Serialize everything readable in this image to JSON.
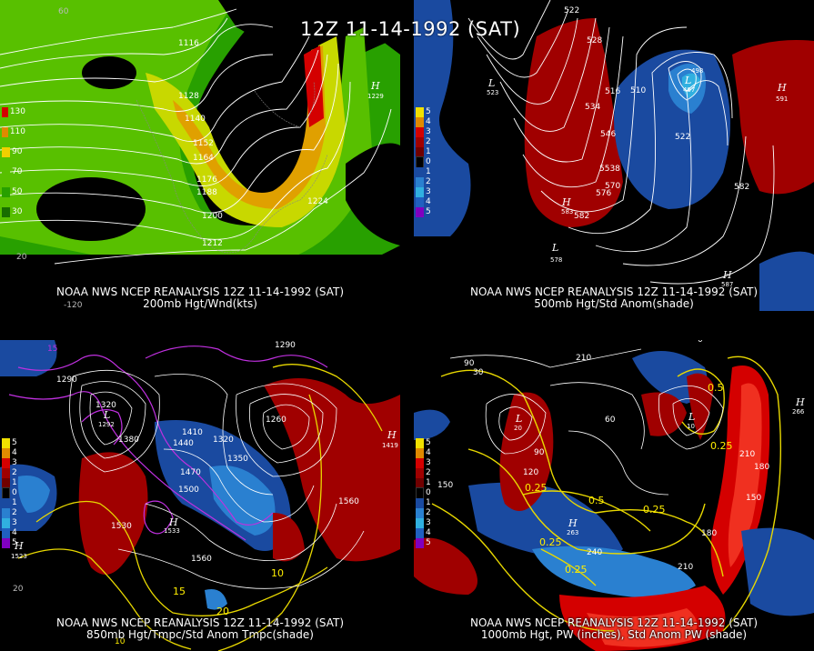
{
  "main_title": "12Z 11-14-1992 (SAT)",
  "panels": [
    {
      "id": "p200",
      "caption_line1": "NOAA NWS NCEP REANALYSIS 12Z 11-14-1992 (SAT)",
      "caption_line2": "200mb Hgt/Wnd(kts)",
      "legend": [
        {
          "label": "130",
          "color": "#d40000"
        },
        {
          "label": "110",
          "color": "#e08a00"
        },
        {
          "label": "90",
          "color": "#f0d000"
        },
        {
          "label": "70",
          "color": "#58c000"
        },
        {
          "label": "50",
          "color": "#28a000"
        },
        {
          "label": "30",
          "color": "#186e00"
        }
      ],
      "contour_labels": [
        "1116",
        "1128",
        "1140",
        "1152",
        "1164",
        "1176",
        "1188",
        "1200",
        "1212",
        "1224"
      ],
      "high_labels": [
        {
          "symbol": "H",
          "value": "1229"
        }
      ],
      "misc_labels": [
        "60",
        "20",
        "-120"
      ]
    },
    {
      "id": "p500",
      "caption_line1": "NOAA NWS NCEP REANALYSIS 12Z 11-14-1992 (SAT)",
      "caption_line2": "500mb Hgt/Std Anom(shade)",
      "legend": [
        {
          "label": "5",
          "color": "#f0e000"
        },
        {
          "label": "4",
          "color": "#e08a00"
        },
        {
          "label": "3",
          "color": "#d40000"
        },
        {
          "label": "2",
          "color": "#a00000"
        },
        {
          "label": "1",
          "color": "#700000"
        },
        {
          "label": "0",
          "color": "#000000"
        },
        {
          "label": "1",
          "color": "#1a4aa0"
        },
        {
          "label": "2",
          "color": "#2a80d0"
        },
        {
          "label": "3",
          "color": "#30b0e0"
        },
        {
          "label": "4",
          "color": "#2060c0"
        },
        {
          "label": "5",
          "color": "#8000c0"
        }
      ],
      "contour_labels": [
        "522",
        "528",
        "516",
        "510",
        "534",
        "546",
        "522",
        "5538",
        "570",
        "576",
        "582",
        "582"
      ],
      "high_labels": [
        {
          "symbol": "H",
          "value": "583"
        },
        {
          "symbol": "H",
          "value": "591"
        },
        {
          "symbol": "H",
          "value": "587"
        }
      ],
      "low_labels": [
        {
          "symbol": "L",
          "value": "523"
        },
        {
          "symbol": "L",
          "value": "578"
        },
        {
          "symbol": "L",
          "value": "497"
        }
      ],
      "misc_labels": [
        "498"
      ]
    },
    {
      "id": "p850",
      "caption_line1": "NOAA NWS NCEP REANALYSIS 12Z 11-14-1992 (SAT)",
      "caption_line2": "850mb Hgt/Tmpc/Std Anom Tmpc(shade)",
      "legend": [
        {
          "label": "5",
          "color": "#f0e000"
        },
        {
          "label": "4",
          "color": "#e08a00"
        },
        {
          "label": "3",
          "color": "#d40000"
        },
        {
          "label": "2",
          "color": "#a00000"
        },
        {
          "label": "1",
          "color": "#700000"
        },
        {
          "label": "0",
          "color": "#000000"
        },
        {
          "label": "1",
          "color": "#1a4aa0"
        },
        {
          "label": "2",
          "color": "#2a80d0"
        },
        {
          "label": "3",
          "color": "#30b0e0"
        },
        {
          "label": "4",
          "color": "#2060c0"
        },
        {
          "label": "5",
          "color": "#8000c0"
        }
      ],
      "contour_labels": [
        "1290",
        "1320",
        "1380",
        "1410",
        "1440",
        "1470",
        "1500",
        "1530",
        "1560",
        "1350",
        "1320",
        "1290",
        "1260",
        "1560"
      ],
      "temp_labels": [
        "10",
        "15",
        "20"
      ],
      "high_labels": [
        {
          "symbol": "H",
          "value": "1523"
        },
        {
          "symbol": "H",
          "value": "1533"
        },
        {
          "symbol": "H",
          "value": "1419"
        }
      ],
      "low_labels": [
        {
          "symbol": "L",
          "value": "1292"
        }
      ],
      "misc_labels": [
        "15",
        "10",
        "20"
      ]
    },
    {
      "id": "p1000",
      "caption_line1": "NOAA NWS NCEP REANALYSIS 12Z 11-14-1992 (SAT)",
      "caption_line2": "1000mb Hgt, PW (inches), Std Anom PW (shade)",
      "legend": [
        {
          "label": "5",
          "color": "#f0e000"
        },
        {
          "label": "4",
          "color": "#e08a00"
        },
        {
          "label": "3",
          "color": "#d40000"
        },
        {
          "label": "2",
          "color": "#a00000"
        },
        {
          "label": "1",
          "color": "#700000"
        },
        {
          "label": "0",
          "color": "#000000"
        },
        {
          "label": "1",
          "color": "#1a4aa0"
        },
        {
          "label": "2",
          "color": "#2a80d0"
        },
        {
          "label": "3",
          "color": "#30b0e0"
        },
        {
          "label": "4",
          "color": "#2060c0"
        },
        {
          "label": "5",
          "color": "#8000c0"
        }
      ],
      "contour_labels": [
        "210",
        "90",
        "60",
        "30",
        "90",
        "120",
        "150",
        "180",
        "210",
        "240",
        "150",
        "180",
        "210"
      ],
      "pw_labels": [
        "0.5",
        "0.25",
        "0.5",
        "0.25",
        "0.25",
        "0.25",
        "0.25"
      ],
      "high_labels": [
        {
          "symbol": "H",
          "value": "266"
        },
        {
          "symbol": "H",
          "value": "263"
        }
      ],
      "low_labels": [
        {
          "symbol": "L",
          "value": "20"
        },
        {
          "symbol": "L",
          "value": "10"
        }
      ],
      "misc_labels": [
        "0"
      ]
    }
  ]
}
